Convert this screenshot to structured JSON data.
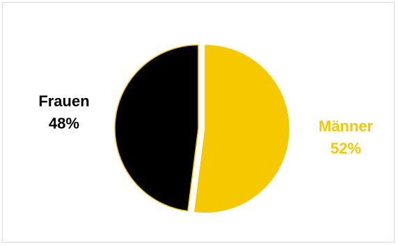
{
  "chart_data": {
    "type": "pie",
    "title": "",
    "slices": [
      {
        "label": "Männer",
        "value": 52,
        "value_label": "52%",
        "color": "#f5c800",
        "label_color": "#f5c800"
      },
      {
        "label": "Frauen",
        "value": 48,
        "value_label": "48%",
        "color": "#000000",
        "label_color": "#000000"
      }
    ],
    "exploded": true,
    "start": "12 o'clock, clockwise",
    "legend": "none (labels beside slices)"
  }
}
